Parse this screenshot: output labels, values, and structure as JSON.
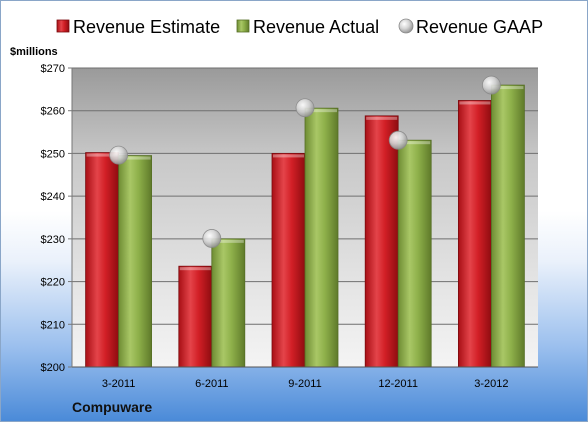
{
  "chart_data": {
    "type": "bar",
    "unit_label": "$millions",
    "company": "Compuware",
    "categories": [
      "3-2011",
      "6-2011",
      "9-2011",
      "12-2011",
      "3-2012"
    ],
    "series": [
      {
        "name": "Revenue Estimate",
        "type": "bar",
        "color": "#d21f26",
        "values": [
          250.2,
          223.6,
          250.0,
          258.8,
          262.4
        ]
      },
      {
        "name": "Revenue Actual",
        "type": "bar",
        "color": "#8eb04a",
        "values": [
          249.5,
          230.0,
          260.6,
          253.1,
          266.0
        ]
      },
      {
        "name": "Revenue GAAP",
        "type": "marker",
        "color": "#b8b8b8",
        "values": [
          249.6,
          230.1,
          260.7,
          253.1,
          266.0
        ]
      }
    ],
    "y_ticks": [
      "$200",
      "$210",
      "$220",
      "$230",
      "$240",
      "$250",
      "$260",
      "$270"
    ],
    "ylim": [
      200,
      270
    ],
    "grid": true,
    "legend_position": "top"
  }
}
